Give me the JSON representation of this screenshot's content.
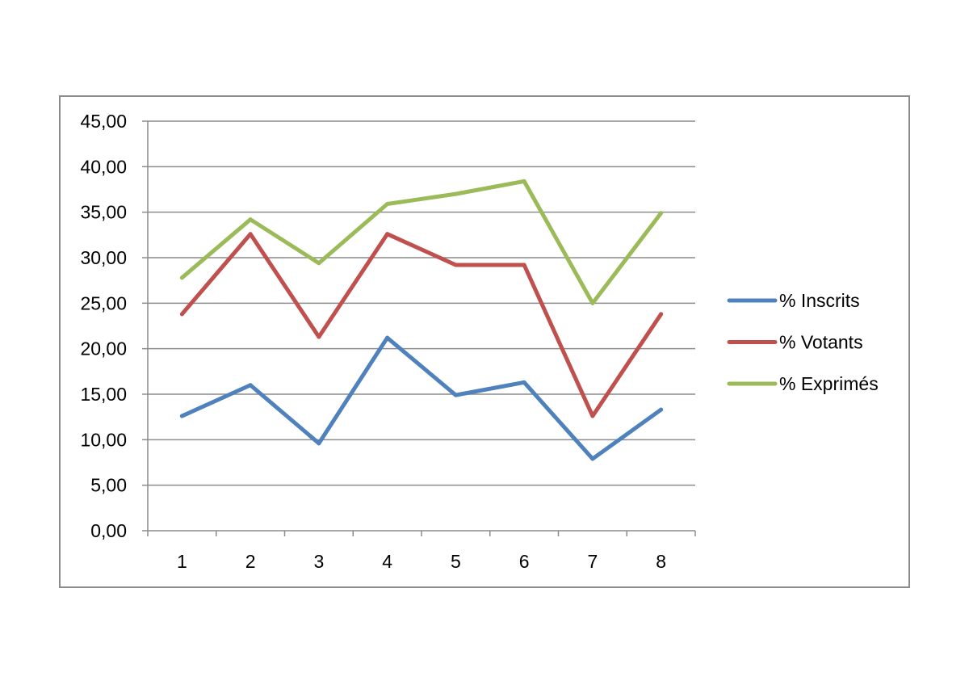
{
  "chart_data": {
    "type": "line",
    "categories": [
      "1",
      "2",
      "3",
      "4",
      "5",
      "6",
      "7",
      "8"
    ],
    "y_tick_labels": [
      "0,00",
      "5,00",
      "10,00",
      "15,00",
      "20,00",
      "25,00",
      "30,00",
      "35,00",
      "40,00",
      "45,00"
    ],
    "ylim": [
      0,
      45
    ],
    "y_step": 5,
    "grid": "horizontal",
    "legend_position": "right",
    "series": [
      {
        "name": "% Inscrits",
        "color": "#4f81bd",
        "values": [
          12.6,
          16.0,
          9.6,
          21.2,
          14.9,
          16.3,
          7.9,
          13.3
        ]
      },
      {
        "name": "% Votants",
        "color": "#c0504d",
        "values": [
          23.8,
          32.6,
          21.3,
          32.6,
          29.2,
          29.2,
          12.6,
          23.8
        ]
      },
      {
        "name": "% Exprimés",
        "color": "#9bbb59",
        "values": [
          27.8,
          34.2,
          29.4,
          35.9,
          37.0,
          38.4,
          25.0,
          34.9
        ]
      }
    ]
  }
}
